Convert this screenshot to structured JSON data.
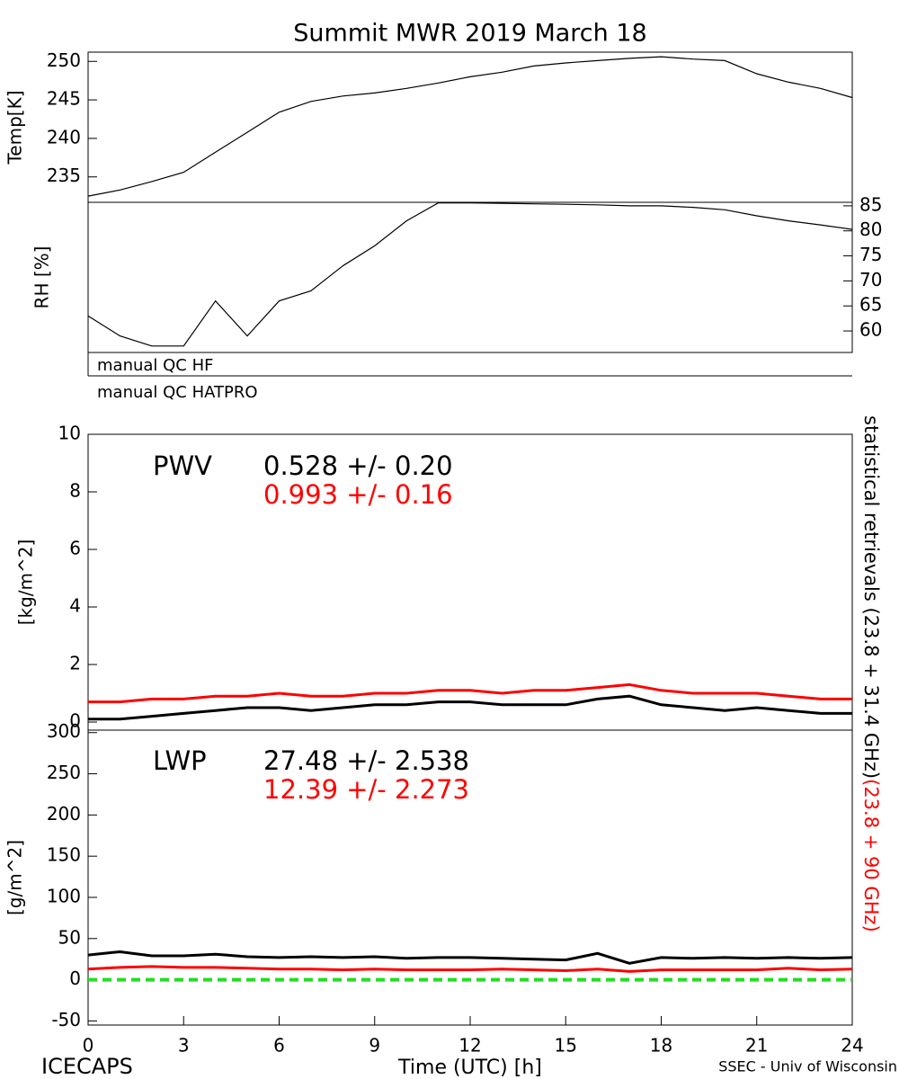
{
  "title": "Summit MWR 2019 March 18",
  "footer_left": "ICECAPS",
  "footer_right": "SSEC - Univ of Wisconsin",
  "qc_labels": [
    "manual QC HF",
    "manual QC HATPRO"
  ],
  "side_label": [
    {
      "text": "statistical retrievals (23.8 + 31.4 GHz)",
      "color": "#000000"
    },
    {
      "text": "(23.8 + 90 GHz)",
      "color": "#ff0000"
    }
  ],
  "chart_data": [
    {
      "type": "line",
      "ylabel": "Temp[K]",
      "yaxis_side": "left",
      "xlim": [
        0,
        24
      ],
      "ylim": [
        231.7,
        251.2
      ],
      "yticks": [
        235,
        240,
        245,
        250
      ],
      "x": [
        0,
        1,
        2,
        3,
        4,
        5,
        6,
        7,
        8,
        9,
        10,
        11,
        12,
        13,
        14,
        15,
        16,
        17,
        18,
        19,
        20,
        21,
        22,
        23,
        24
      ],
      "series": [
        {
          "name": "Temp",
          "color": "#000000",
          "values": [
            232.5,
            233.3,
            234.4,
            235.6,
            238.2,
            240.8,
            243.4,
            244.8,
            245.5,
            245.9,
            246.5,
            247.2,
            248.0,
            248.6,
            249.4,
            249.8,
            250.1,
            250.4,
            250.6,
            250.3,
            250.1,
            248.4,
            247.3,
            246.5,
            245.3
          ]
        }
      ]
    },
    {
      "type": "line",
      "ylabel": "RH [%]",
      "yaxis_side": "right",
      "xlim": [
        0,
        24
      ],
      "ylim": [
        55.7,
        85.7
      ],
      "yticks": [
        60,
        65,
        70,
        75,
        80,
        85
      ],
      "x": [
        0,
        1,
        2,
        3,
        4,
        5,
        6,
        7,
        8,
        9,
        10,
        11,
        12,
        13,
        14,
        15,
        16,
        17,
        18,
        19,
        20,
        21,
        22,
        23,
        24
      ],
      "series": [
        {
          "name": "RH",
          "color": "#000000",
          "values": [
            63,
            59,
            57,
            57,
            66,
            59,
            66,
            68,
            73,
            77,
            82,
            85.6,
            85.6,
            85.5,
            85.4,
            85.3,
            85.2,
            85.0,
            85.0,
            84.7,
            84.2,
            83.0,
            82.0,
            81.2,
            80.3
          ]
        }
      ]
    },
    {
      "type": "line",
      "ylabel": "[kg/m^2]",
      "yaxis_side": "left",
      "xlim": [
        0,
        24
      ],
      "ylim": [
        -0.28,
        10
      ],
      "yticks": [
        0,
        2,
        4,
        6,
        8,
        10
      ],
      "x": [
        0,
        1,
        2,
        3,
        4,
        5,
        6,
        7,
        8,
        9,
        10,
        11,
        12,
        13,
        14,
        15,
        16,
        17,
        18,
        19,
        20,
        21,
        22,
        23,
        24
      ],
      "annotations": [
        {
          "text": "PWV",
          "color": "#000000"
        },
        {
          "text": "0.528 +/-  0.20",
          "color": "#000000"
        },
        {
          "text": "0.993 +/-  0.16",
          "color": "#ff0000"
        }
      ],
      "series": [
        {
          "name": "PWV statistical retrievals (23.8 + 31.4 GHz)",
          "color": "#000000",
          "values": [
            0.1,
            0.1,
            0.2,
            0.3,
            0.4,
            0.5,
            0.5,
            0.4,
            0.5,
            0.6,
            0.6,
            0.7,
            0.7,
            0.6,
            0.6,
            0.6,
            0.8,
            0.9,
            0.6,
            0.5,
            0.4,
            0.5,
            0.4,
            0.3,
            0.3
          ]
        },
        {
          "name": "PWV (23.8 + 90 GHz)",
          "color": "#ff0000",
          "values": [
            0.7,
            0.7,
            0.8,
            0.8,
            0.9,
            0.9,
            1.0,
            0.9,
            0.9,
            1.0,
            1.0,
            1.1,
            1.1,
            1.0,
            1.1,
            1.1,
            1.2,
            1.3,
            1.1,
            1.0,
            1.0,
            1.0,
            0.9,
            0.8,
            0.8
          ]
        }
      ]
    },
    {
      "type": "line",
      "ylabel": "[g/m^2]",
      "yaxis_side": "left",
      "xlabel": "Time (UTC) [h]",
      "xlim": [
        0,
        24
      ],
      "ylim": [
        -55,
        303
      ],
      "yticks": [
        -50,
        0,
        50,
        100,
        150,
        200,
        250,
        300
      ],
      "xticks": [
        0,
        3,
        6,
        9,
        12,
        15,
        18,
        21,
        24
      ],
      "x": [
        0,
        1,
        2,
        3,
        4,
        5,
        6,
        7,
        8,
        9,
        10,
        11,
        12,
        13,
        14,
        15,
        16,
        17,
        18,
        19,
        20,
        21,
        22,
        23,
        24
      ],
      "annotations": [
        {
          "text": "LWP",
          "color": "#000000"
        },
        {
          "text": "27.48 +/-  2.538",
          "color": "#000000"
        },
        {
          "text": "12.39 +/-  2.273",
          "color": "#ff0000"
        }
      ],
      "reference_line": {
        "value": 0,
        "color": "#22dd22"
      },
      "series": [
        {
          "name": "LWP statistical retrievals (23.8 + 31.4 GHz)",
          "color": "#000000",
          "values": [
            30,
            34,
            29,
            29,
            31,
            28,
            27,
            28,
            27,
            28,
            26,
            27,
            27,
            26,
            25,
            24,
            32,
            20,
            27,
            26,
            27,
            26,
            27,
            26,
            27
          ]
        },
        {
          "name": "LWP (23.8 + 90 GHz)",
          "color": "#ff0000",
          "values": [
            13,
            15,
            16,
            15,
            15,
            14,
            13,
            13,
            12,
            13,
            12,
            12,
            12,
            13,
            12,
            11,
            13,
            10,
            12,
            12,
            12,
            12,
            14,
            12,
            13
          ]
        }
      ]
    }
  ]
}
